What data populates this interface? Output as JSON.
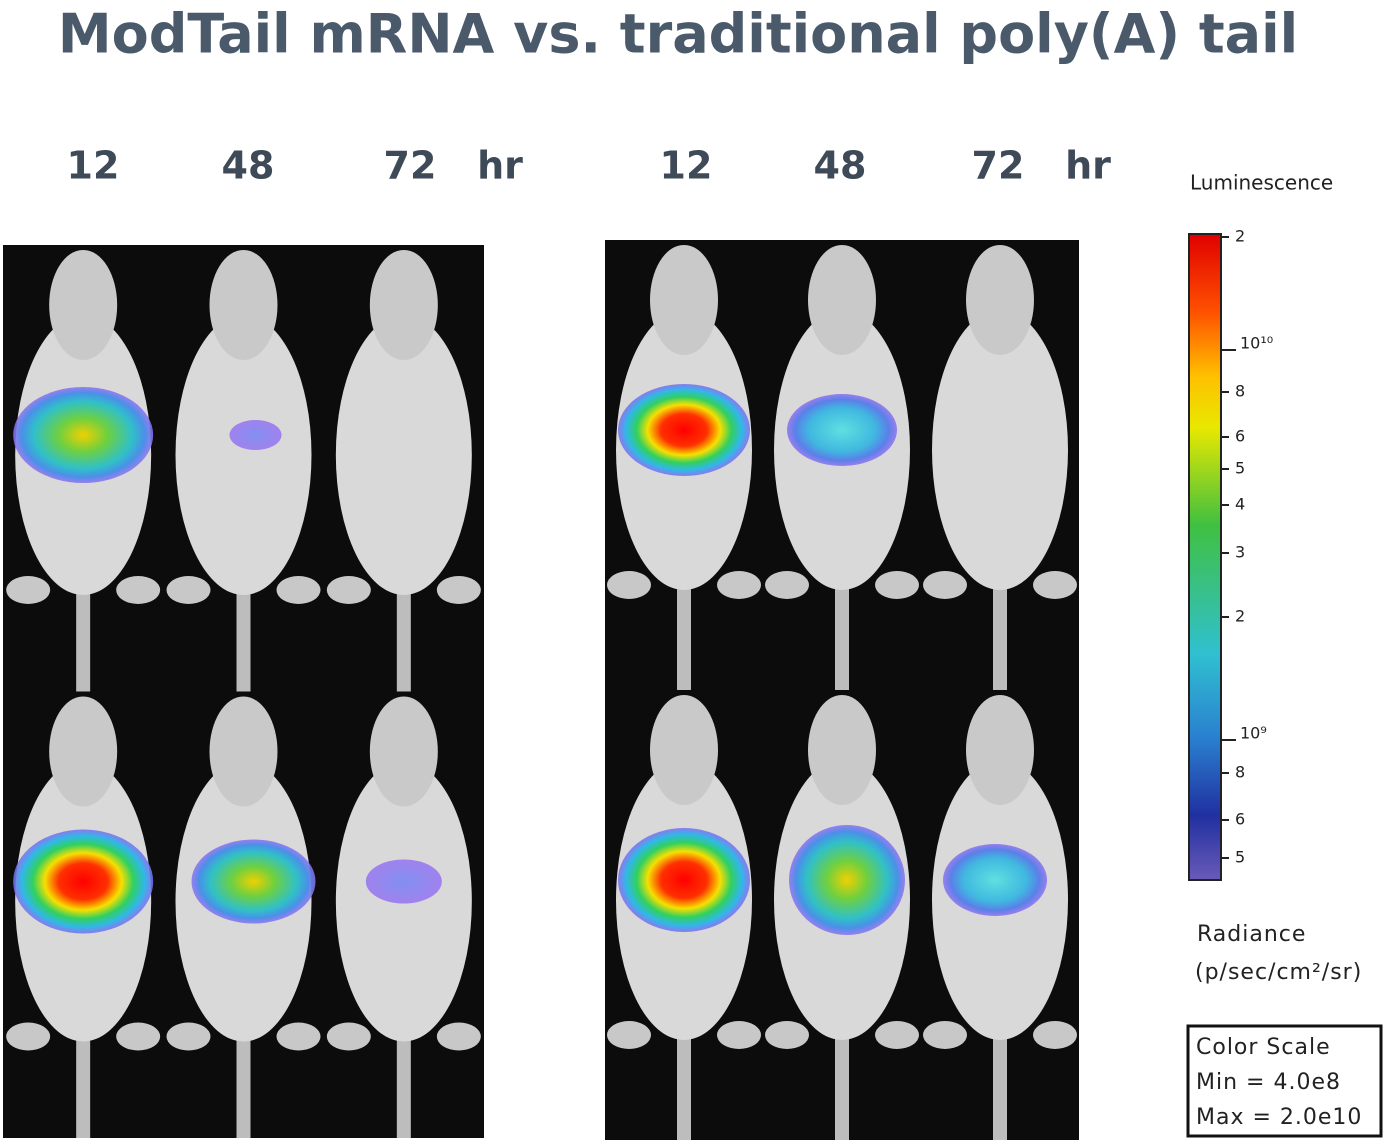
{
  "title": "ModTail mRNA vs. traditional poly(A) tail",
  "panels": [
    {
      "time_labels": [
        "12",
        "48",
        "72"
      ],
      "unit": "hr"
    },
    {
      "time_labels": [
        "12",
        "48",
        "72"
      ],
      "unit": "hr"
    }
  ],
  "color_bar": {
    "title": "Luminescence",
    "tick_labels": [
      "2",
      "10¹⁰",
      "8",
      "6",
      "5",
      "4",
      "3",
      "2",
      "10⁹",
      "8",
      "6",
      "5"
    ]
  },
  "radiance": {
    "label": "Radiance",
    "unit": "(p/sec/cm²/sr)"
  },
  "color_scale_box": {
    "title": "Color Scale",
    "min": "Min = 4.0e8",
    "max": "Max = 2.0e10"
  }
}
